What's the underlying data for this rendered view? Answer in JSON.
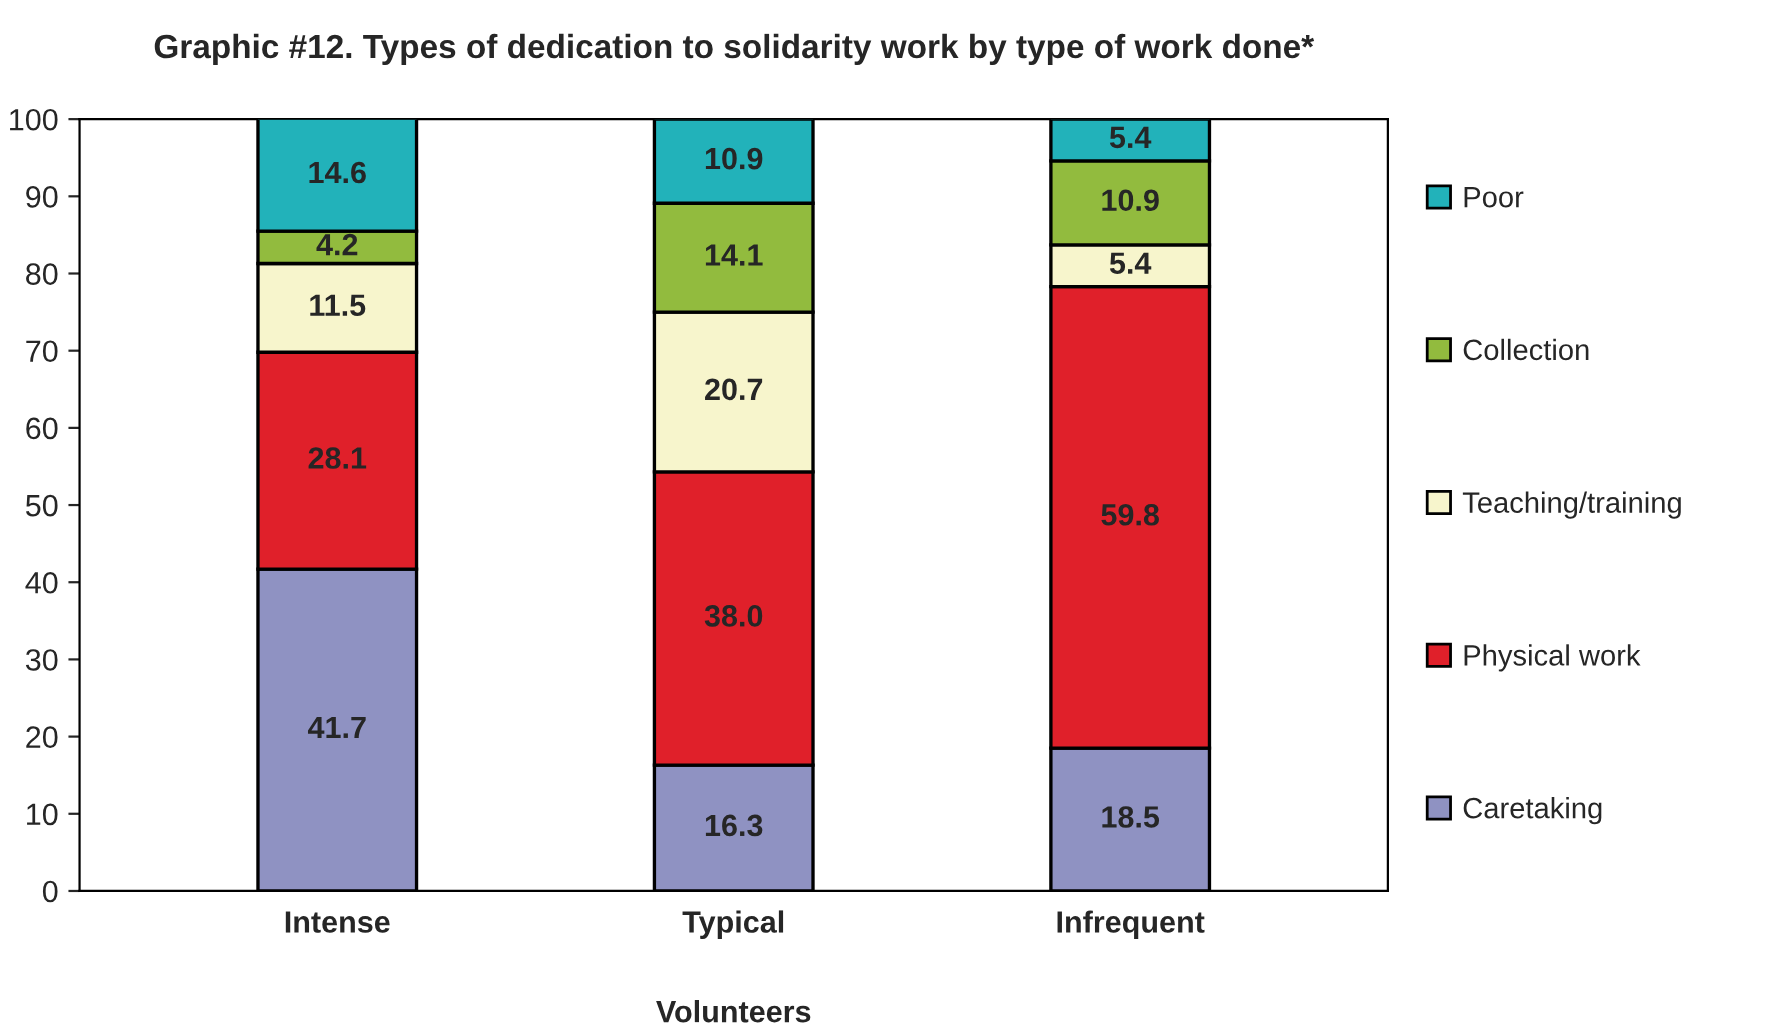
{
  "chart_data": {
    "type": "bar",
    "title": "Graphic #12. Types of dedication to solidarity work by type of work done*",
    "xlabel": "Volunteers",
    "categories": [
      "Intense",
      "Typical",
      "Infrequent"
    ],
    "stacked": true,
    "data_labels": true,
    "legend": "right",
    "grid": false,
    "ylim": [
      0,
      100
    ],
    "yticks": [
      0,
      10,
      20,
      30,
      40,
      50,
      60,
      70,
      80,
      90,
      100
    ],
    "series": [
      {
        "name": "Caretaking",
        "color": "#8f92c2",
        "values": [
          41.7,
          16.3,
          18.5
        ]
      },
      {
        "name": "Physical work",
        "color": "#e0202a",
        "values": [
          28.1,
          38.0,
          59.8
        ],
        "value_labels": [
          "28.1",
          "38.0",
          "59.8"
        ]
      },
      {
        "name": "Teaching/training",
        "color": "#f7f5cc",
        "values": [
          11.5,
          20.7,
          5.4
        ]
      },
      {
        "name": "Collection",
        "color": "#92bb3e",
        "values": [
          4.2,
          14.1,
          10.9
        ]
      },
      {
        "name": "Poor",
        "color": "#22b2ba",
        "values": [
          14.6,
          10.9,
          5.4
        ]
      }
    ]
  }
}
